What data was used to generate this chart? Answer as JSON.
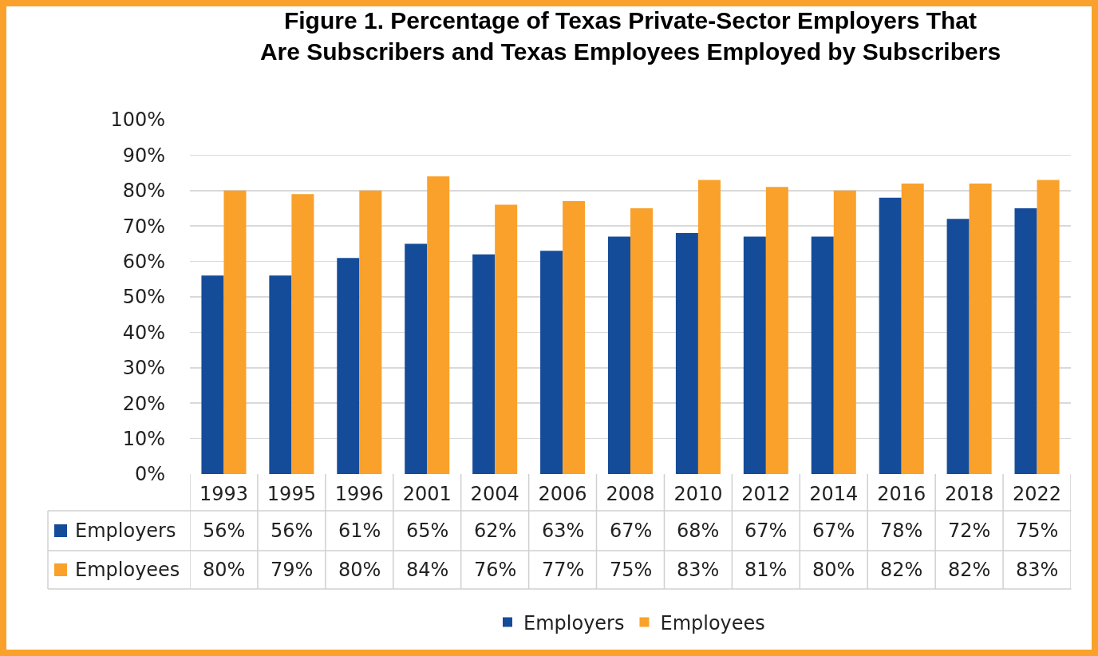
{
  "chart_data": {
    "type": "bar",
    "title": "Figure 1. Percentage of Texas Private-Sector Employers That Are Subscribers and Texas Employees Employed by Subscribers",
    "categories": [
      "1993",
      "1995",
      "1996",
      "2001",
      "2004",
      "2006",
      "2008",
      "2010",
      "2012",
      "2014",
      "2016",
      "2018",
      "2022"
    ],
    "series": [
      {
        "name": "Employers",
        "color": "#154c9a",
        "values": [
          56,
          56,
          61,
          65,
          62,
          63,
          67,
          68,
          67,
          67,
          78,
          72,
          75
        ],
        "value_labels": [
          "56%",
          "56%",
          "61%",
          "65%",
          "62%",
          "63%",
          "67%",
          "68%",
          "67%",
          "67%",
          "78%",
          "72%",
          "75%"
        ]
      },
      {
        "name": "Employees",
        "color": "#f9a12b",
        "values": [
          80,
          79,
          80,
          84,
          76,
          77,
          75,
          83,
          81,
          80,
          82,
          82,
          83
        ],
        "value_labels": [
          "80%",
          "79%",
          "80%",
          "84%",
          "76%",
          "77%",
          "75%",
          "83%",
          "81%",
          "80%",
          "82%",
          "82%",
          "83%"
        ]
      }
    ],
    "ylim": [
      0,
      100
    ],
    "yticks": [
      {
        "value": 0,
        "label": "0%"
      },
      {
        "value": 10,
        "label": "10%"
      },
      {
        "value": 20,
        "label": "20%"
      },
      {
        "value": 30,
        "label": "30%"
      },
      {
        "value": 40,
        "label": "40%"
      },
      {
        "value": 50,
        "label": "50%"
      },
      {
        "value": 60,
        "label": "60%"
      },
      {
        "value": 70,
        "label": "70%"
      },
      {
        "value": 80,
        "label": "80%"
      },
      {
        "value": 90,
        "label": "90%"
      },
      {
        "value": 100,
        "label": "100%"
      }
    ],
    "grid": "y",
    "legend": "bottom"
  }
}
